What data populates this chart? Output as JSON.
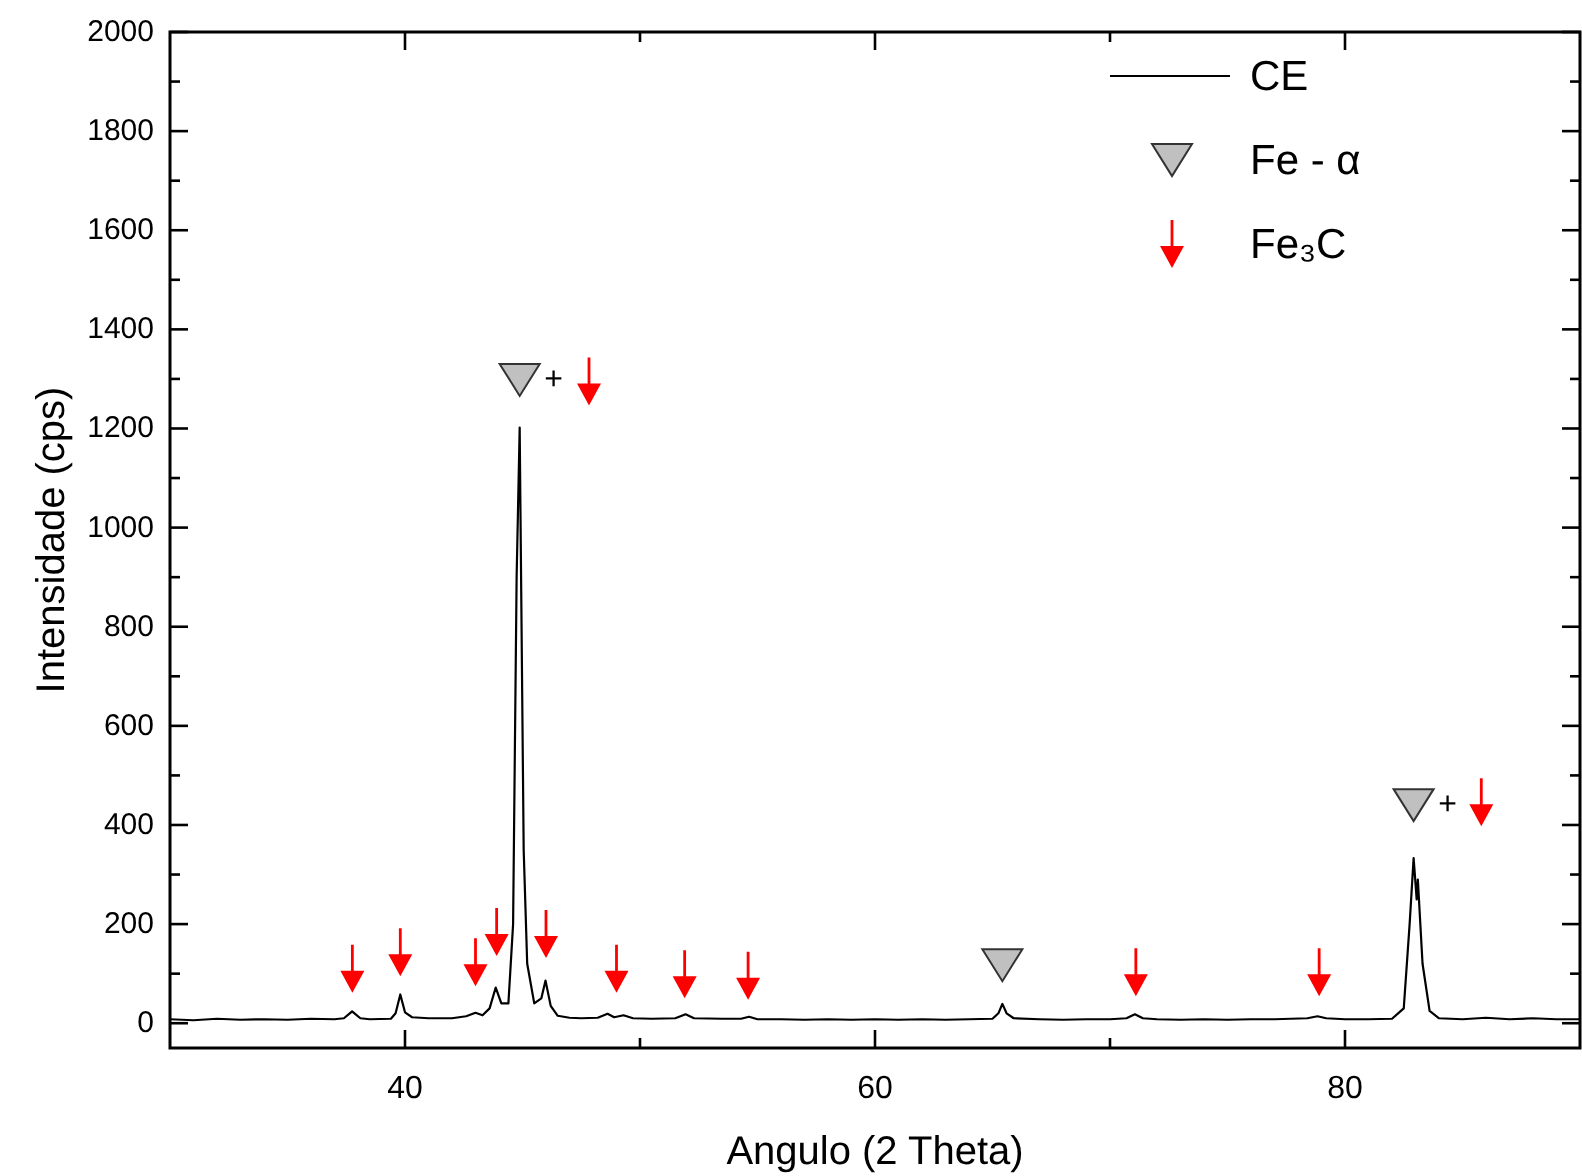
{
  "chart_data": {
    "type": "line",
    "xlabel": "Angulo (2 Theta)",
    "ylabel": "Intensidade (cps)",
    "xlim": [
      30,
      90
    ],
    "ylim": [
      -50,
      2000
    ],
    "xticks": [
      40,
      {
        "value": 50,
        "label": null
      },
      60,
      {
        "value": 70,
        "label": null
      },
      80
    ],
    "yticks": [
      0,
      {
        "value": 100,
        "label": null
      },
      200,
      {
        "value": 300,
        "label": null
      },
      400,
      {
        "value": 500,
        "label": null
      },
      600,
      {
        "value": 700,
        "label": null
      },
      800,
      {
        "value": 900,
        "label": null
      },
      1000,
      {
        "value": 1100,
        "label": null
      },
      1200,
      {
        "value": 1300,
        "label": null
      },
      1400,
      {
        "value": 1500,
        "label": null
      },
      1600,
      {
        "value": 1700,
        "label": null
      },
      1800,
      {
        "value": 1900,
        "label": null
      },
      2000
    ],
    "legend": "top right",
    "grid": false,
    "series": [
      {
        "name": "CE",
        "color": "#000000",
        "marker": "none",
        "x": [
          30,
          31,
          32,
          33,
          34,
          35,
          36,
          37,
          37.4,
          37.75,
          38.1,
          38.5,
          39.4,
          39.6,
          39.8,
          40.0,
          40.3,
          41,
          42,
          42.6,
          43.0,
          43.3,
          43.6,
          43.86,
          44.1,
          44.4,
          44.6,
          44.75,
          44.88,
          44.95,
          45.05,
          45.2,
          45.5,
          45.8,
          45.98,
          46.2,
          46.5,
          47,
          47.5,
          48.2,
          48.62,
          48.9,
          49.3,
          49.7,
          50.5,
          51.5,
          51.94,
          52.3,
          53.5,
          54.3,
          54.64,
          55,
          56,
          57,
          58,
          59,
          60,
          61,
          62,
          63,
          64,
          65.0,
          65.25,
          65.42,
          65.6,
          65.9,
          67,
          68,
          69,
          70,
          70.7,
          71.06,
          71.4,
          72,
          73,
          74,
          75,
          76,
          77,
          78.4,
          78.83,
          79.2,
          80,
          81,
          82,
          82.5,
          82.75,
          82.92,
          83.05,
          83.1,
          83.3,
          83.6,
          84,
          85,
          86,
          87,
          88,
          89,
          90
        ],
        "values": [
          8,
          6,
          9,
          7,
          8,
          7,
          9,
          8,
          10,
          24,
          10,
          8,
          9,
          20,
          58,
          22,
          12,
          10,
          10,
          14,
          21,
          16,
          30,
          72,
          40,
          40,
          200,
          900,
          1202,
          850,
          350,
          120,
          40,
          50,
          86,
          35,
          15,
          11,
          10,
          11,
          19,
          12,
          16,
          10,
          9,
          10,
          18,
          10,
          9,
          9,
          13,
          8,
          8,
          7,
          8,
          7,
          8,
          7,
          8,
          7,
          8,
          9,
          20,
          39,
          20,
          10,
          8,
          7,
          8,
          8,
          10,
          18,
          10,
          8,
          7,
          8,
          7,
          8,
          8,
          10,
          14,
          10,
          8,
          8,
          9,
          30,
          200,
          333,
          250,
          290,
          120,
          25,
          10,
          8,
          11,
          8,
          10,
          8,
          8
        ]
      },
      {
        "name": "Fe - α",
        "type": "scatter",
        "color": "#c0c0c0",
        "marker": "triangle",
        "x": [
          44.88,
          82.92,
          65.42
        ],
        "values": [
          1298,
          440,
          117
        ]
      },
      {
        "name": "Fe₃C",
        "type": "scatter",
        "color": "#ff0000",
        "x": [
          37.76,
          39.8,
          43.0,
          43.9,
          46.0,
          47.83,
          49.0,
          51.9,
          54.6,
          71.1,
          78.9,
          85.8
        ],
        "values": [
          110,
          143,
          123,
          184,
          180,
          1295,
          110,
          99,
          96,
          103,
          103,
          446
        ]
      }
    ],
    "annotations": [
      "+",
      "+"
    ]
  }
}
